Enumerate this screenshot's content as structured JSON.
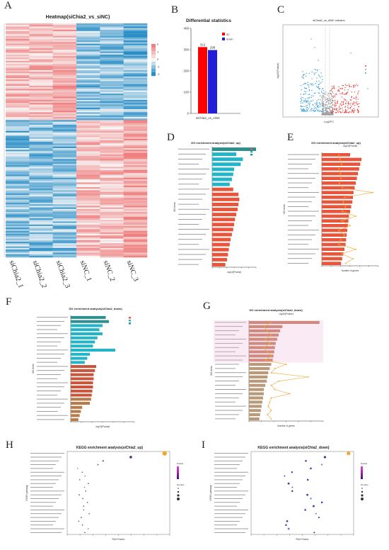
{
  "panels": {
    "A": {
      "letter": "A",
      "title": "Heatmap(siChia2_vs_siNC)",
      "samples": [
        "siChia2_1",
        "siChia2_2",
        "siChia2_3",
        "siNC_1",
        "siNC_2",
        "siNC_3"
      ],
      "scale_ticks": [
        "2",
        "1",
        "0",
        "-1",
        "-2"
      ]
    },
    "B": {
      "letter": "B"
    },
    "C": {
      "letter": "C"
    },
    "D": {
      "letter": "D"
    },
    "E": {
      "letter": "E"
    },
    "F": {
      "letter": "F"
    },
    "G": {
      "letter": "G"
    },
    "H": {
      "letter": "H"
    },
    "I": {
      "letter": "I"
    }
  },
  "colors": {
    "up": "#ff0000",
    "down": "#1f1fd9",
    "bp": "#e8553a",
    "cc": "#21b5c7",
    "mf": "#2f8f8f",
    "heat_high": "#f08080",
    "heat_low": "#2a8fc7",
    "enrich_orange": "#f0a830"
  },
  "chart_data": [
    {
      "id": "B",
      "type": "bar",
      "title": "Differential statistics",
      "categories": [
        "siChia2_vs_siNC"
      ],
      "series": [
        {
          "name": "up",
          "values": [
            312
          ]
        },
        {
          "name": "down",
          "values": [
            298
          ]
        }
      ],
      "ylim": [
        0,
        400
      ],
      "yticks": [
        0,
        100,
        200,
        300,
        400
      ],
      "legend": "top-right"
    },
    {
      "id": "C",
      "type": "scatter",
      "title": "siChia2_vs_siNC volcano",
      "xlabel": "Log2FC",
      "ylabel": "-log10(Pvalue)"
    },
    {
      "id": "D",
      "type": "bar",
      "title": "GO enrichment analysis(siChia2_up)",
      "xlabel": "-log10(Pvalue)",
      "ylabel": "GO terms",
      "legend": "top-right"
    },
    {
      "id": "E",
      "type": "bar",
      "title": "GO enrichment analysis(siChia2_up)",
      "xlabel": "Number of genes",
      "ylabel": "GO terms",
      "top_label": "-log10(Pvalue)"
    },
    {
      "id": "F",
      "type": "bar",
      "title": "GO enrichment analysis(siChia2_down)",
      "xlabel": "-log10(Pvalue)",
      "ylabel": "GO terms",
      "legend": "top-right"
    },
    {
      "id": "G",
      "type": "bar",
      "title": "GO enrichment analysis(siChia2_down)",
      "xlabel": "Number of genes",
      "ylabel": "GO terms",
      "top_label": "-log10(Pvalue)"
    },
    {
      "id": "H",
      "type": "scatter",
      "title": "KEGG enrichment analysis(siChia2_up)",
      "xlabel": "Rich Factor",
      "ylabel": "KEGG pathway",
      "legend_titles": [
        "Pvalue",
        "Number"
      ]
    },
    {
      "id": "I",
      "type": "scatter",
      "title": "KEGG enrichment analysis(siChia2_down)",
      "xlabel": "Rich Factor",
      "ylabel": "KEGG pathway",
      "legend_titles": [
        "Pvalue",
        "Number"
      ]
    }
  ]
}
